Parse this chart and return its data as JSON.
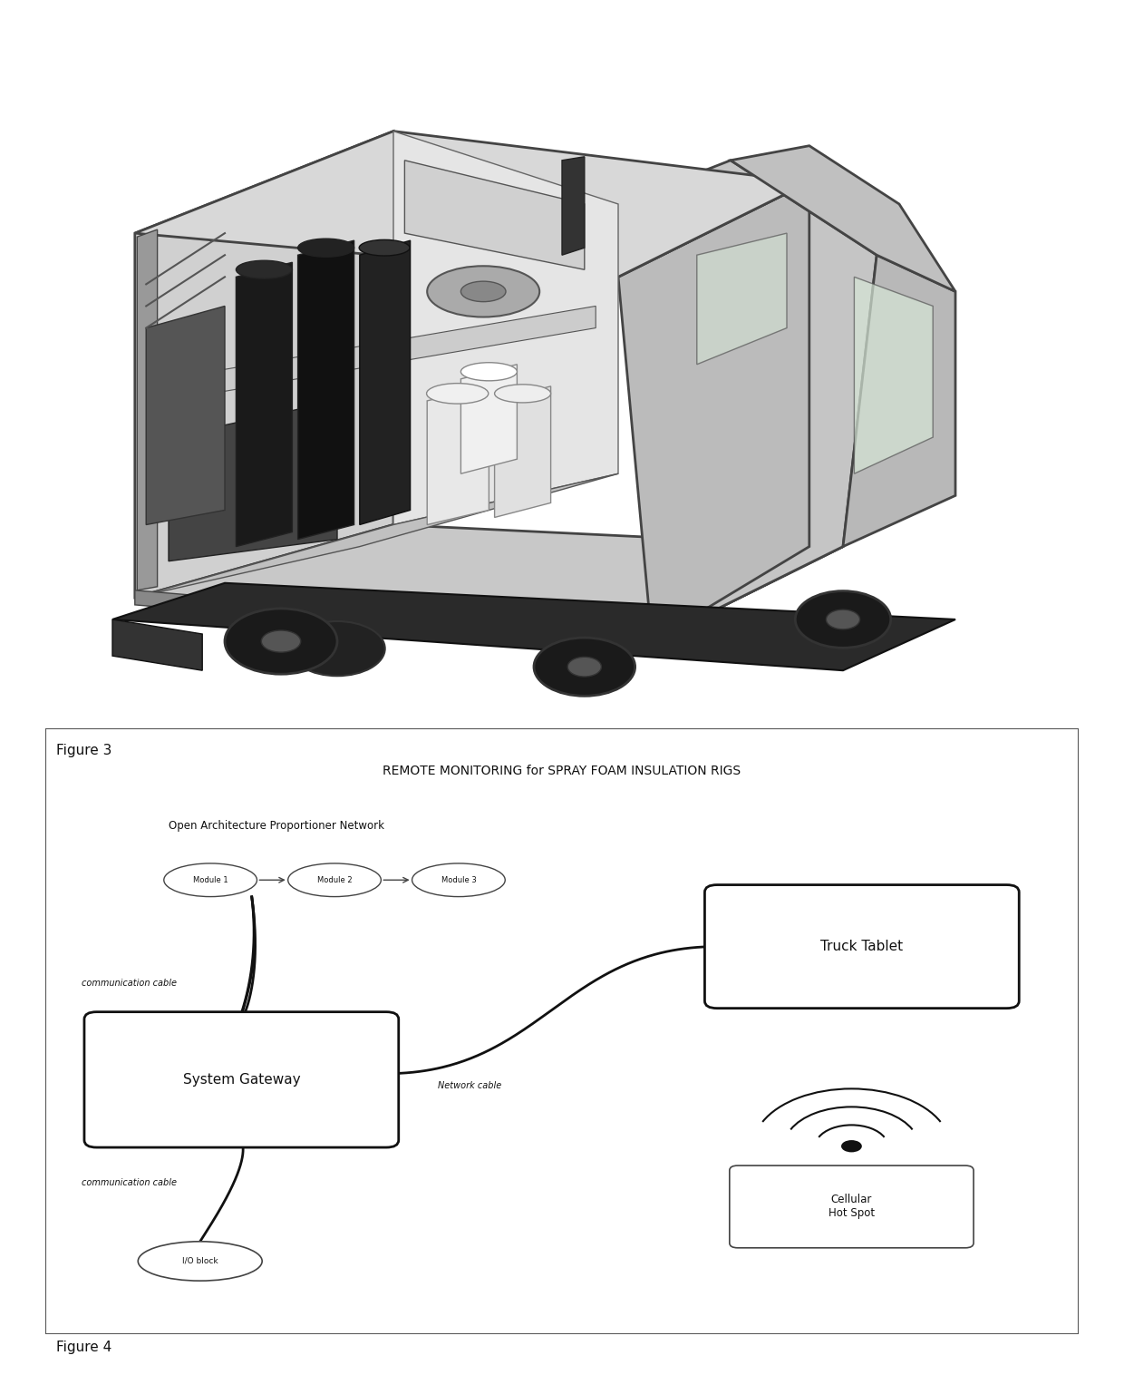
{
  "fig_width": 12.4,
  "fig_height": 15.16,
  "bg_color": "#ffffff",
  "figure3_label": "Figure 3",
  "figure4_label": "Figure 4",
  "diagram_title": "REMOTE MONITORING for SPRAY FOAM INSULATION RIGS",
  "oapn_label": "Open Architecture Proportioner Network",
  "modules": [
    "Module 1",
    "Module 2",
    "Module 3"
  ],
  "gateway_label": "System Gateway",
  "tablet_label": "Truck Tablet",
  "hotspot_label": "Cellular\nHot Spot",
  "io_label": "I/O block",
  "comm_cable_top": "communication cable",
  "comm_cable_bottom": "communication cable",
  "network_cable": "Network cable",
  "text_color": "#111111"
}
